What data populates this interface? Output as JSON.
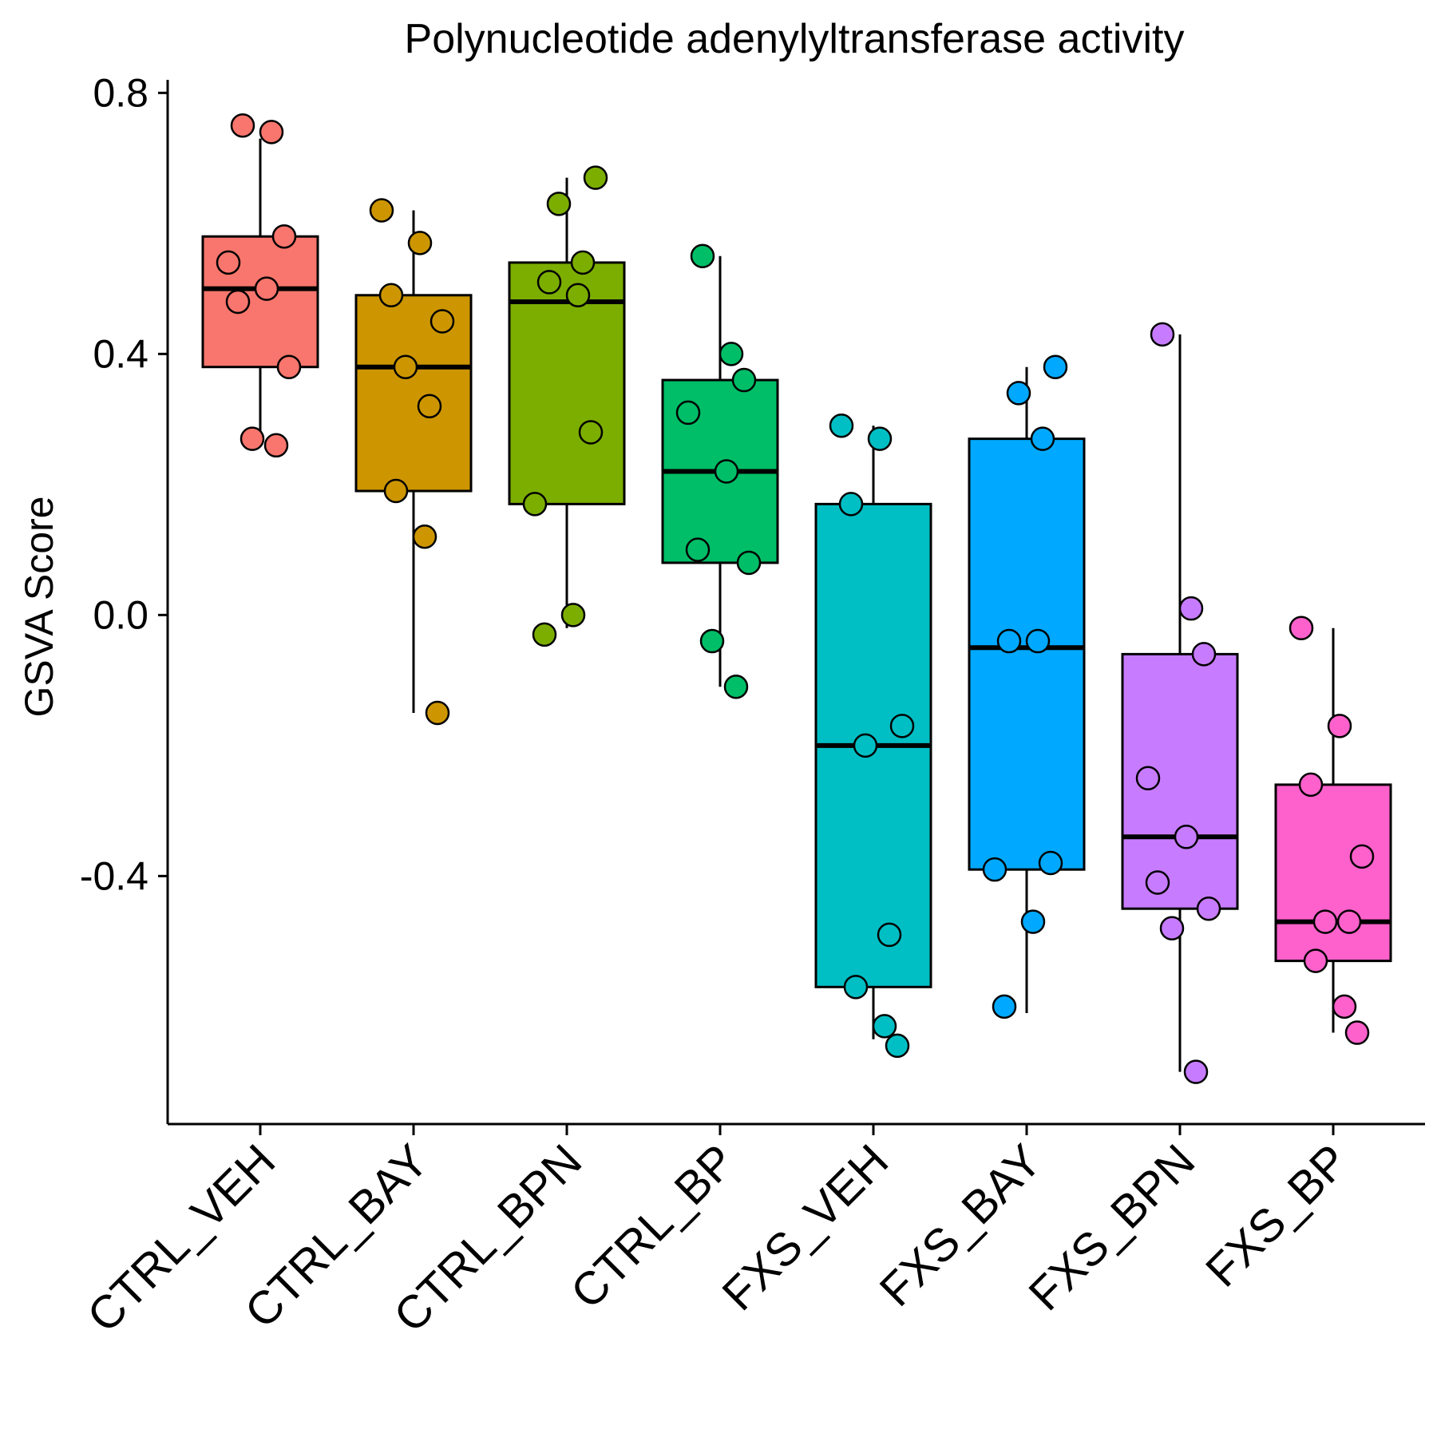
{
  "chart_data": {
    "type": "box",
    "title": "Polynucleotide adenylyltransferase activity",
    "xlabel": "",
    "ylabel": "GSVA Score",
    "ylim": [
      -0.78,
      0.82
    ],
    "yticks": [
      0.8,
      0.4,
      0.0,
      -0.4
    ],
    "ytick_labels": [
      "0.8",
      "0.4",
      "0.0",
      "-0.4"
    ],
    "grid": false,
    "legend": "none",
    "categories": [
      "CTRL_VEH",
      "CTRL_BAY",
      "CTRL_BPN",
      "CTRL_BP",
      "FXS_VEH",
      "FXS_BAY",
      "FXS_BPN",
      "FXS_BP"
    ],
    "colors": [
      "#F8766D",
      "#CD9600",
      "#7CAE00",
      "#00BE67",
      "#00BFC4",
      "#00A9FF",
      "#C77CFF",
      "#FF61CC"
    ],
    "boxes": [
      {
        "name": "CTRL_VEH",
        "whisker_low": 0.26,
        "q1": 0.38,
        "median": 0.5,
        "q3": 0.58,
        "whisker_high": 0.73
      },
      {
        "name": "CTRL_BAY",
        "whisker_low": -0.15,
        "q1": 0.19,
        "median": 0.38,
        "q3": 0.49,
        "whisker_high": 0.62
      },
      {
        "name": "CTRL_BPN",
        "whisker_low": -0.02,
        "q1": 0.17,
        "median": 0.48,
        "q3": 0.54,
        "whisker_high": 0.67
      },
      {
        "name": "CTRL_BP",
        "whisker_low": -0.11,
        "q1": 0.08,
        "median": 0.22,
        "q3": 0.36,
        "whisker_high": 0.55
      },
      {
        "name": "FXS_VEH",
        "whisker_low": -0.65,
        "q1": -0.57,
        "median": -0.2,
        "q3": 0.17,
        "whisker_high": 0.29
      },
      {
        "name": "FXS_BAY",
        "whisker_low": -0.61,
        "q1": -0.39,
        "median": -0.05,
        "q3": 0.27,
        "whisker_high": 0.38
      },
      {
        "name": "FXS_BPN",
        "whisker_low": -0.7,
        "q1": -0.45,
        "median": -0.34,
        "q3": -0.06,
        "whisker_high": 0.43
      },
      {
        "name": "FXS_BP",
        "whisker_low": -0.64,
        "q1": -0.53,
        "median": -0.47,
        "q3": -0.26,
        "whisker_high": -0.02
      }
    ],
    "points": [
      [
        0.75,
        0.74,
        0.58,
        0.54,
        0.5,
        0.48,
        0.38,
        0.27,
        0.26
      ],
      [
        0.62,
        0.57,
        0.49,
        0.45,
        0.38,
        0.32,
        0.19,
        0.12,
        -0.15
      ],
      [
        0.67,
        0.63,
        0.54,
        0.51,
        0.49,
        0.28,
        0.17,
        0.0,
        -0.03
      ],
      [
        0.55,
        0.4,
        0.36,
        0.31,
        0.22,
        0.1,
        0.08,
        -0.04,
        -0.11
      ],
      [
        0.29,
        0.27,
        0.17,
        -0.17,
        -0.2,
        -0.49,
        -0.57,
        -0.63,
        -0.66
      ],
      [
        0.38,
        0.34,
        0.27,
        -0.04,
        -0.04,
        -0.38,
        -0.39,
        -0.47,
        -0.6
      ],
      [
        0.43,
        0.01,
        -0.06,
        -0.25,
        -0.34,
        -0.41,
        -0.45,
        -0.48,
        -0.7
      ],
      [
        -0.02,
        -0.17,
        -0.26,
        -0.37,
        -0.47,
        -0.47,
        -0.53,
        -0.6,
        -0.64
      ]
    ]
  }
}
